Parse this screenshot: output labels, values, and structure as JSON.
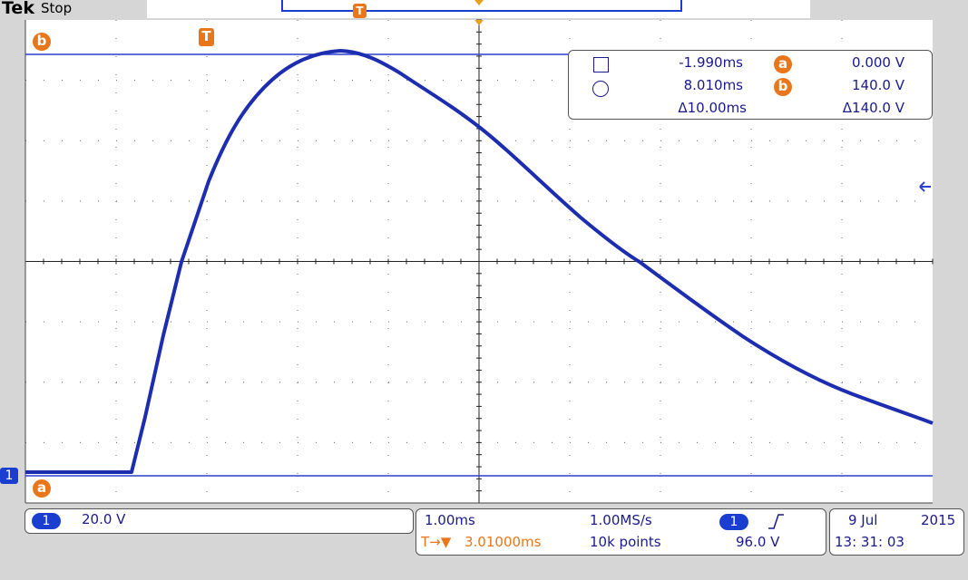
{
  "header": {
    "brand": "Tek",
    "state": "Stop"
  },
  "markers": {
    "cursor_b": "b",
    "cursor_a": "a",
    "trigger_top": "T",
    "trigger_left": "T",
    "channel": "1"
  },
  "cursor_readout": {
    "rows": [
      {
        "time": "-1.990ms",
        "label": "a",
        "value": "0.000 V"
      },
      {
        "time": "8.010ms",
        "label": "b",
        "value": "140.0 V"
      },
      {
        "time": "Δ10.00ms",
        "value": "Δ140.0 V"
      }
    ]
  },
  "status_bar": {
    "channel": {
      "badge": "1",
      "scale": "20.0 V"
    },
    "horizontal": {
      "time_scale": "1.00ms",
      "sample_rate": "1.00MS/s",
      "trigger_channel": "1",
      "trigger_level": "96.0 V",
      "trigger_icon": "T→▼",
      "position": "3.01000ms",
      "record_length": "10k points"
    },
    "datetime": {
      "date": "9 Jul",
      "year": "2015",
      "time": "13: 31: 03"
    }
  }
}
